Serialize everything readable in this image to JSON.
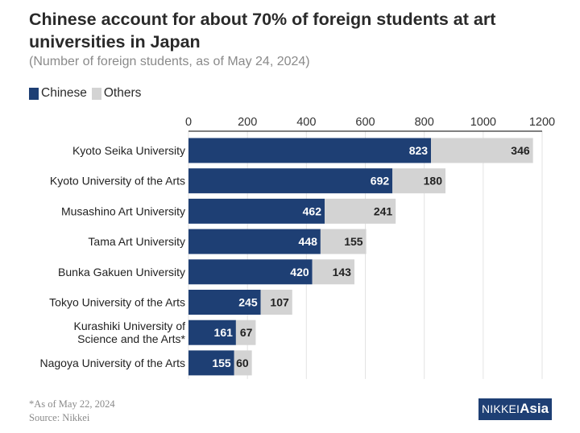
{
  "title": "Chinese account for about 70% of foreign students at art universities in Japan",
  "subtitle": "(Number of foreign students, as of May 24, 2024)",
  "legend": [
    {
      "label": "Chinese",
      "color": "#1e3f74"
    },
    {
      "label": "Others",
      "color": "#d3d3d3"
    }
  ],
  "chart_data": {
    "type": "bar",
    "orientation": "horizontal",
    "stacked": true,
    "categories": [
      "Kyoto Seika University",
      "Kyoto University of the Arts",
      "Musashino Art University",
      "Tama Art University",
      "Bunka Gakuen University",
      "Tokyo University of the Arts",
      "Kurashiki University of\nScience and the Arts*",
      "Nagoya University of the Arts"
    ],
    "series": [
      {
        "name": "Chinese",
        "color": "#1e3f74",
        "values": [
          823,
          692,
          462,
          448,
          420,
          245,
          161,
          155
        ]
      },
      {
        "name": "Others",
        "color": "#d3d3d3",
        "values": [
          346,
          180,
          241,
          155,
          143,
          107,
          67,
          60
        ]
      }
    ],
    "xlim": [
      0,
      1200
    ],
    "xticks": [
      0,
      200,
      400,
      600,
      800,
      1000,
      1200
    ],
    "axis_position": "top",
    "grid": true,
    "legend_position": "top-left"
  },
  "footnote": {
    "line1": "*As of May 22, 2024",
    "line2": "Source: Nikkei"
  },
  "logo": {
    "part1": "NIKKEI",
    "part2": "Asia"
  }
}
